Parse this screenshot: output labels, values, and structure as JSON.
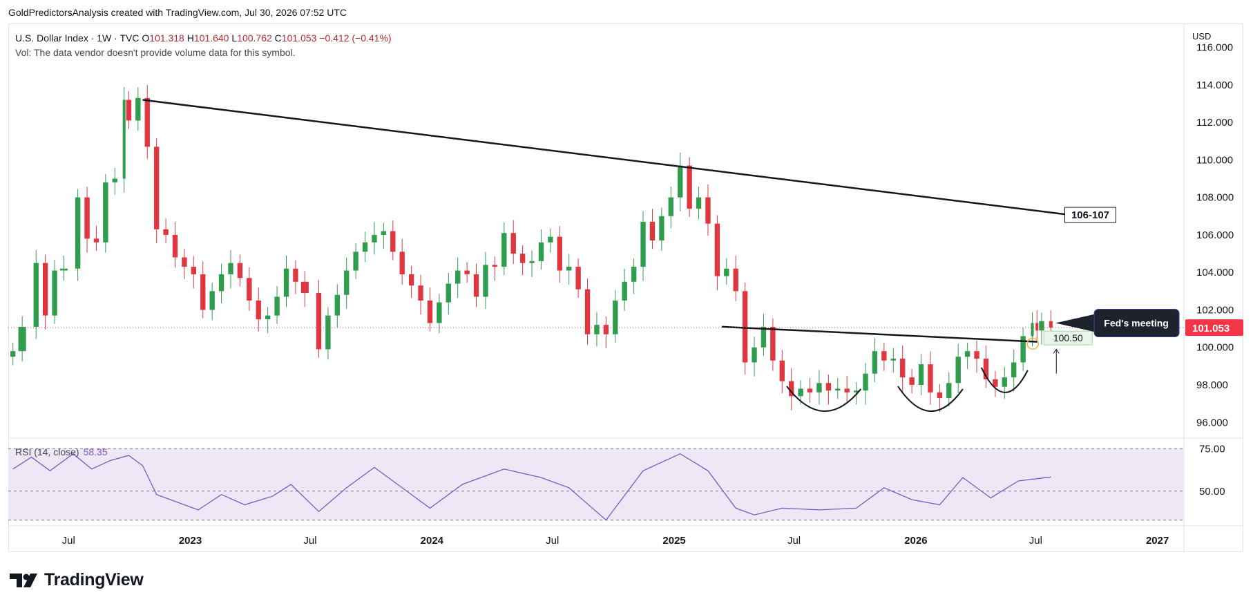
{
  "attribution": "GoldPredictorsAnalysis created with TradingView.com, Jul 30, 2026 07:52 UTC",
  "legend": {
    "symbol": "U.S. Dollar Index · 1W · TVC",
    "open_label": "O",
    "open": "101.318",
    "high_label": "H",
    "high": "101.640",
    "low_label": "L",
    "low": "100.762",
    "close_label": "C",
    "close": "101.053",
    "change": "−0.412 (−0.41%)",
    "volume_note": "Vol: The data vendor doesn't provide volume data for this symbol."
  },
  "currency": "USD",
  "colors": {
    "up": "#26a69a",
    "candle_up": "#2e9e4e",
    "candle_down": "#e0363f",
    "trend": "#131722",
    "rsi_line": "#7e57c2",
    "rsi_band": "#ede7f6",
    "last_price_bg": "#f23645",
    "resistance_highlight": "#e8f5e9"
  },
  "annotations": {
    "target_label": "106-107",
    "fed_label": "Fed's meeting",
    "neckline_label": "100.50",
    "last_price": "101.053"
  },
  "rsi": {
    "label": "RSI (14, close)",
    "value": "58.35",
    "levels": [
      "75.00",
      "50.00"
    ]
  },
  "brand": "TradingView",
  "chart_data": {
    "type": "candlestick",
    "title": "U.S. Dollar Index · 1W · TVC",
    "interval": "1W",
    "y_ticks": [
      "96.000",
      "98.000",
      "100.000",
      "102.000",
      "104.000",
      "106.000",
      "108.000",
      "110.000",
      "112.000",
      "114.000",
      "116.000"
    ],
    "ylim": [
      95.2,
      117.2
    ],
    "x_ticks": [
      "Jul",
      "2023",
      "Jul",
      "2024",
      "Jul",
      "2025",
      "Jul",
      "2026",
      "Jul",
      "2027"
    ],
    "x_tick_dates": [
      "2022-07-01",
      "2023-01-01",
      "2023-07-01",
      "2024-01-01",
      "2024-07-01",
      "2025-01-01",
      "2025-07-01",
      "2026-01-01",
      "2026-07-01",
      "2027-01-01"
    ],
    "xlim": [
      "2022-04-01",
      "2027-02-10"
    ],
    "close_series": [
      [
        "2022-04-08",
        99.8
      ],
      [
        "2022-04-22",
        101.1
      ],
      [
        "2022-05-13",
        104.5
      ],
      [
        "2022-05-27",
        101.7
      ],
      [
        "2022-06-10",
        104.1
      ],
      [
        "2022-06-24",
        104.2
      ],
      [
        "2022-07-15",
        108.0
      ],
      [
        "2022-07-29",
        105.8
      ],
      [
        "2022-08-12",
        105.6
      ],
      [
        "2022-08-26",
        108.8
      ],
      [
        "2022-09-09",
        109.0
      ],
      [
        "2022-09-23",
        113.2
      ],
      [
        "2022-09-30",
        112.1
      ],
      [
        "2022-10-14",
        113.3
      ],
      [
        "2022-10-28",
        110.7
      ],
      [
        "2022-11-11",
        106.3
      ],
      [
        "2022-11-25",
        106.0
      ],
      [
        "2022-12-09",
        104.8
      ],
      [
        "2022-12-23",
        104.3
      ],
      [
        "2023-01-06",
        103.9
      ],
      [
        "2023-01-20",
        102.0
      ],
      [
        "2023-02-03",
        103.0
      ],
      [
        "2023-02-17",
        103.9
      ],
      [
        "2023-03-03",
        104.5
      ],
      [
        "2023-03-17",
        103.7
      ],
      [
        "2023-03-31",
        102.5
      ],
      [
        "2023-04-14",
        101.5
      ],
      [
        "2023-04-28",
        101.7
      ],
      [
        "2023-05-12",
        102.7
      ],
      [
        "2023-05-26",
        104.2
      ],
      [
        "2023-06-09",
        103.5
      ],
      [
        "2023-06-23",
        102.9
      ],
      [
        "2023-07-14",
        99.9
      ],
      [
        "2023-07-28",
        101.7
      ],
      [
        "2023-08-11",
        102.8
      ],
      [
        "2023-08-25",
        104.1
      ],
      [
        "2023-09-08",
        105.1
      ],
      [
        "2023-09-22",
        105.6
      ],
      [
        "2023-10-06",
        106.0
      ],
      [
        "2023-10-20",
        106.2
      ],
      [
        "2023-11-03",
        105.1
      ],
      [
        "2023-11-17",
        103.9
      ],
      [
        "2023-12-01",
        103.3
      ],
      [
        "2023-12-15",
        102.5
      ],
      [
        "2023-12-29",
        101.3
      ],
      [
        "2024-01-12",
        102.4
      ],
      [
        "2024-01-26",
        103.4
      ],
      [
        "2024-02-09",
        104.1
      ],
      [
        "2024-02-23",
        103.9
      ],
      [
        "2024-03-08",
        102.7
      ],
      [
        "2024-03-22",
        104.4
      ],
      [
        "2024-04-05",
        104.3
      ],
      [
        "2024-04-19",
        106.1
      ],
      [
        "2024-05-03",
        105.0
      ],
      [
        "2024-05-17",
        104.5
      ],
      [
        "2024-05-31",
        104.6
      ],
      [
        "2024-06-14",
        105.6
      ],
      [
        "2024-06-28",
        105.9
      ],
      [
        "2024-07-12",
        104.1
      ],
      [
        "2024-07-26",
        104.3
      ],
      [
        "2024-08-09",
        103.1
      ],
      [
        "2024-08-23",
        100.7
      ],
      [
        "2024-09-06",
        101.2
      ],
      [
        "2024-09-20",
        100.7
      ],
      [
        "2024-10-04",
        102.5
      ],
      [
        "2024-10-18",
        103.5
      ],
      [
        "2024-11-01",
        104.3
      ],
      [
        "2024-11-15",
        106.7
      ],
      [
        "2024-11-29",
        105.7
      ],
      [
        "2024-12-13",
        107.0
      ],
      [
        "2024-12-27",
        108.0
      ],
      [
        "2025-01-10",
        109.7
      ],
      [
        "2025-01-24",
        107.4
      ],
      [
        "2025-02-07",
        108.0
      ],
      [
        "2025-02-21",
        106.6
      ],
      [
        "2025-03-07",
        103.8
      ],
      [
        "2025-03-21",
        104.2
      ],
      [
        "2025-04-04",
        103.0
      ],
      [
        "2025-04-18",
        99.2
      ],
      [
        "2025-05-02",
        100.0
      ],
      [
        "2025-05-16",
        101.1
      ],
      [
        "2025-05-30",
        99.3
      ],
      [
        "2025-06-13",
        98.2
      ],
      [
        "2025-06-27",
        97.4
      ],
      [
        "2025-07-11",
        97.8
      ],
      [
        "2025-07-25",
        97.6
      ],
      [
        "2025-08-08",
        98.1
      ],
      [
        "2025-08-22",
        97.7
      ],
      [
        "2025-09-05",
        97.8
      ],
      [
        "2025-09-19",
        97.6
      ],
      [
        "2025-10-03",
        97.7
      ],
      [
        "2025-10-17",
        98.6
      ],
      [
        "2025-10-31",
        99.8
      ],
      [
        "2025-11-14",
        99.3
      ],
      [
        "2025-11-28",
        99.4
      ],
      [
        "2025-12-12",
        98.4
      ],
      [
        "2025-12-26",
        98.0
      ],
      [
        "2026-01-09",
        99.1
      ],
      [
        "2026-01-23",
        97.6
      ],
      [
        "2026-02-06",
        97.3
      ],
      [
        "2026-02-20",
        98.1
      ],
      [
        "2026-03-06",
        99.5
      ],
      [
        "2026-03-20",
        99.8
      ],
      [
        "2026-04-03",
        99.4
      ],
      [
        "2026-04-17",
        98.3
      ],
      [
        "2026-05-01",
        97.9
      ],
      [
        "2026-05-15",
        98.4
      ],
      [
        "2026-05-29",
        99.2
      ],
      [
        "2026-06-12",
        100.6
      ],
      [
        "2026-06-26",
        101.3
      ],
      [
        "2026-07-03",
        100.9
      ],
      [
        "2026-07-10",
        101.4
      ],
      [
        "2026-07-24",
        101.053
      ]
    ],
    "trendlines": [
      {
        "points": [
          [
            "2022-10-21",
            113.2
          ],
          [
            "2026-08-14",
            107.1
          ]
        ]
      },
      {
        "points": [
          [
            "2025-03-14",
            101.1
          ],
          [
            "2026-07-03",
            100.3
          ]
        ]
      }
    ],
    "patterns": [
      {
        "start": "2025-06-20",
        "end": "2025-10-10",
        "low": 96.6
      },
      {
        "start": "2025-12-05",
        "end": "2026-03-13",
        "low": 96.6
      },
      {
        "start": "2026-04-10",
        "end": "2026-06-19",
        "low": 97.6
      }
    ],
    "rsi_series": [
      [
        "2022-04-08",
        63
      ],
      [
        "2022-05-06",
        70
      ],
      [
        "2022-06-03",
        62
      ],
      [
        "2022-07-08",
        72
      ],
      [
        "2022-08-05",
        63
      ],
      [
        "2022-09-02",
        68
      ],
      [
        "2022-09-30",
        71
      ],
      [
        "2022-10-21",
        65
      ],
      [
        "2022-11-11",
        48
      ],
      [
        "2022-12-09",
        44
      ],
      [
        "2023-01-13",
        39
      ],
      [
        "2023-02-17",
        48
      ],
      [
        "2023-03-24",
        42
      ],
      [
        "2023-05-05",
        47
      ],
      [
        "2023-06-02",
        54
      ],
      [
        "2023-07-14",
        38
      ],
      [
        "2023-08-25",
        52
      ],
      [
        "2023-10-06",
        64
      ],
      [
        "2023-11-17",
        52
      ],
      [
        "2023-12-29",
        40
      ],
      [
        "2024-02-16",
        54
      ],
      [
        "2024-04-19",
        63
      ],
      [
        "2024-06-14",
        58
      ],
      [
        "2024-07-26",
        52
      ],
      [
        "2024-09-20",
        33
      ],
      [
        "2024-11-15",
        62
      ],
      [
        "2025-01-10",
        72
      ],
      [
        "2025-02-21",
        62
      ],
      [
        "2025-04-04",
        40
      ],
      [
        "2025-05-02",
        36
      ],
      [
        "2025-06-13",
        40
      ],
      [
        "2025-08-08",
        39
      ],
      [
        "2025-10-03",
        40
      ],
      [
        "2025-11-14",
        52
      ],
      [
        "2025-12-26",
        45
      ],
      [
        "2026-02-06",
        42
      ],
      [
        "2026-03-13",
        58
      ],
      [
        "2026-04-24",
        46
      ],
      [
        "2026-06-05",
        56
      ],
      [
        "2026-07-24",
        58.35
      ]
    ],
    "rsi_ylim": [
      30,
      80
    ],
    "rsi_levels": [
      75,
      50,
      33
    ]
  }
}
